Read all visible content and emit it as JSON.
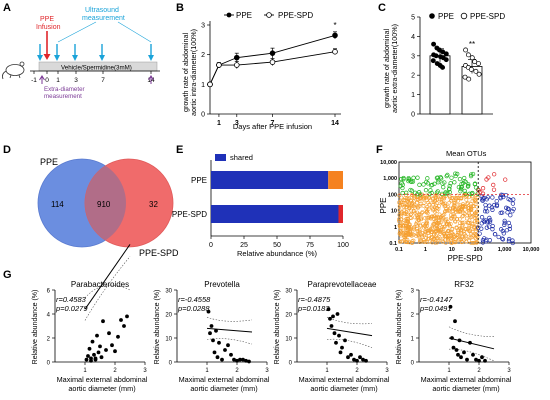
{
  "panels": {
    "A": {
      "letter": "A",
      "ppe_infusion_label": "PPE\nInfusion",
      "ultrasound_label": "Ultrasound\nmeasurement",
      "bar_label": "Vehicle/Spermidine(3mM)",
      "ticks": [
        "-1",
        "0",
        "1",
        "3",
        "7",
        "14"
      ],
      "extra_label": "Extra-diameter\nmeasurement",
      "colors": {
        "ppe": "#e0262b",
        "ultrasound": "#1aa3d9",
        "extra": "#7b3a96"
      }
    },
    "B": {
      "letter": "B"
    },
    "C": {
      "letter": "C"
    },
    "D": {
      "letter": "D",
      "left_label": "PPE",
      "right_label": "PPE-SPD",
      "left_only": "114",
      "shared": "910",
      "right_only": "32",
      "colors": {
        "left": "#6b8ee0",
        "right": "#f06b6b",
        "overlap": "#b16d88"
      }
    },
    "E": {
      "letter": "E"
    },
    "F": {
      "letter": "F"
    },
    "G": {
      "letter": "G",
      "ylabel": "Relative abundance (%)",
      "xlabel": "Maximal external abdominal\naortic diameter (mm)",
      "subplots": [
        {
          "title": "Parabacteroides",
          "r": "r=0.4583",
          "p": "p=0.0279"
        },
        {
          "title": "Prevotella",
          "r": "r=-0.4558",
          "p": "p=0.0288"
        },
        {
          "title": "Paraprevotellaceae",
          "r": "r=-0.4875",
          "p": "p=0.0183"
        },
        {
          "title": "RF32",
          "r": "r=-0.4147",
          "p": "p=0.0491"
        }
      ]
    }
  },
  "chart_data": [
    {
      "panel": "B",
      "type": "line",
      "xlabel": "Days after PPE infusion",
      "ylabel": "growth rate of abdominal\naortic intra-diameter(100%)",
      "x": [
        0,
        1,
        3,
        7,
        14
      ],
      "xticks": [
        "1",
        "3",
        "7",
        "14"
      ],
      "ylim": [
        0,
        3
      ],
      "yticks": [
        "0",
        "1",
        "2",
        "3"
      ],
      "annotation": "*",
      "series": [
        {
          "name": "PPE",
          "marker": "filled",
          "values": [
            1.0,
            1.65,
            1.9,
            2.05,
            2.65
          ],
          "errors": [
            0,
            0.08,
            0.15,
            0.17,
            0.12
          ]
        },
        {
          "name": "PPE-SPD",
          "marker": "open",
          "values": [
            1.0,
            1.65,
            1.65,
            1.75,
            2.1
          ],
          "errors": [
            0,
            0.08,
            0.12,
            0.12,
            0.1
          ]
        }
      ]
    },
    {
      "panel": "C",
      "type": "bar",
      "ylabel": "growth rate of abdominal\naortic extra-diameter(100%)",
      "categories": [
        "PPE",
        "PPE-SPD"
      ],
      "values": [
        3.0,
        2.45
      ],
      "ylim": [
        0,
        5
      ],
      "yticks": [
        "0",
        "1",
        "2",
        "3",
        "4",
        "5"
      ],
      "annotation": "**",
      "legend": [
        {
          "name": "PPE",
          "marker": "filled"
        },
        {
          "name": "PPE-SPD",
          "marker": "open"
        }
      ],
      "points": [
        [
          3.6,
          3.4,
          3.3,
          3.2,
          3.1,
          3.05,
          3.0,
          2.95,
          2.9,
          2.8,
          2.75,
          2.6,
          2.5,
          2.4
        ],
        [
          3.3,
          3.05,
          2.9,
          2.7,
          2.6,
          2.5,
          2.4,
          2.3,
          2.2,
          2.05,
          1.9,
          1.8
        ]
      ]
    },
    {
      "panel": "E",
      "type": "bar",
      "orientation": "horizontal",
      "stacked": true,
      "categories": [
        "PPE",
        "PPE-SPD"
      ],
      "xlabel": "Relative abundance (%)",
      "xlim": [
        0,
        100
      ],
      "xticks": [
        "0",
        "25",
        "50",
        "75",
        "100"
      ],
      "series": [
        {
          "name": "shared",
          "color": "#1f31b8",
          "values": [
            88.8,
            96.6
          ]
        },
        {
          "name": "",
          "color": "#f58220",
          "values": [
            11.2,
            0
          ]
        },
        {
          "name": "",
          "color": "#e0262b",
          "values": [
            0,
            3.4
          ]
        }
      ]
    },
    {
      "panel": "F",
      "type": "scatter",
      "title": "Mean OTUs",
      "xlabel": "PPE-SPD",
      "ylabel": "PPE",
      "scale": "log",
      "xlim": [
        0.1,
        10000
      ],
      "ylim": [
        0.1,
        10000
      ],
      "xticks": [
        "0.1",
        "1",
        "10",
        "100",
        "1,000",
        "10,000"
      ],
      "yticks": [
        "0.1",
        "1",
        "10",
        "100",
        "1,000",
        "10,000"
      ],
      "threshold": 100,
      "colors": {
        "orange": "#f5a032",
        "green": "#22b522",
        "blue": "#1e2da6",
        "red": "#e0262b"
      }
    },
    {
      "panel": "G1",
      "type": "scatter",
      "xlim": [
        0,
        3
      ],
      "ylim": [
        0,
        6
      ],
      "xticks": [
        "1",
        "2",
        "3"
      ],
      "yticks": [
        "0",
        "2",
        "4",
        "6"
      ],
      "x": [
        1.05,
        1.1,
        1.15,
        1.2,
        1.25,
        1.3,
        1.35,
        1.4,
        1.45,
        1.5,
        1.55,
        1.6,
        1.7,
        1.8,
        1.9,
        2.0,
        2.1,
        2.2,
        2.3,
        2.4,
        1.2,
        1.35
      ],
      "y": [
        0.2,
        0.5,
        1.1,
        0.3,
        1.7,
        0.6,
        0.3,
        2.2,
        0.8,
        1.3,
        0.4,
        3.4,
        1.0,
        2.4,
        1.4,
        0.9,
        2.1,
        3.5,
        3.0,
        3.8,
        0.1,
        0.2
      ],
      "fit": [
        0.8,
        3.6
      ]
    },
    {
      "panel": "G2",
      "type": "scatter",
      "xlim": [
        0,
        3
      ],
      "ylim": [
        0,
        30
      ],
      "xticks": [
        "1",
        "2",
        "3"
      ],
      "yticks": [
        "0",
        "10",
        "20",
        "30"
      ],
      "x": [
        1.05,
        1.1,
        1.15,
        1.2,
        1.25,
        1.3,
        1.35,
        1.4,
        1.5,
        1.6,
        1.7,
        1.8,
        1.9,
        2.0,
        2.1,
        2.2,
        2.3,
        2.4
      ],
      "y": [
        21,
        12,
        15,
        9,
        4,
        13,
        2,
        8,
        1,
        5,
        7,
        3,
        1,
        0.5,
        1,
        1,
        0.5,
        0.2
      ],
      "fit": [
        15,
        -1
      ]
    },
    {
      "panel": "G3",
      "type": "scatter",
      "xlim": [
        0,
        3
      ],
      "ylim": [
        0,
        30
      ],
      "xticks": [
        "1",
        "2",
        "3"
      ],
      "yticks": [
        "0",
        "10",
        "20",
        "30"
      ],
      "x": [
        1.05,
        1.1,
        1.15,
        1.2,
        1.25,
        1.3,
        1.35,
        1.4,
        1.45,
        1.5,
        1.6,
        1.7,
        1.8,
        1.9,
        2.0,
        2.1,
        2.2,
        2.3
      ],
      "y": [
        22,
        18,
        15,
        19,
        12,
        8,
        20,
        11,
        4,
        6,
        9,
        2,
        3,
        1,
        0.5,
        2,
        1,
        0.5
      ],
      "fit": [
        16,
        -2
      ]
    },
    {
      "panel": "G4",
      "type": "scatter",
      "xlim": [
        0,
        3
      ],
      "ylim": [
        0,
        3
      ],
      "xticks": [
        "1",
        "2",
        "3"
      ],
      "yticks": [
        "0",
        "1",
        "2",
        "3"
      ],
      "x": [
        1.05,
        1.1,
        1.15,
        1.2,
        1.25,
        1.3,
        1.35,
        1.4,
        1.5,
        1.6,
        1.7,
        1.8,
        1.9,
        2.0,
        2.1,
        2.2
      ],
      "y": [
        2.3,
        1.0,
        0.6,
        1.7,
        0.5,
        0.3,
        0.9,
        0.2,
        0.4,
        0.1,
        0.8,
        0.3,
        0.1,
        0.05,
        0.2,
        0.05
      ],
      "fit": [
        1.3,
        -0.3
      ]
    }
  ]
}
